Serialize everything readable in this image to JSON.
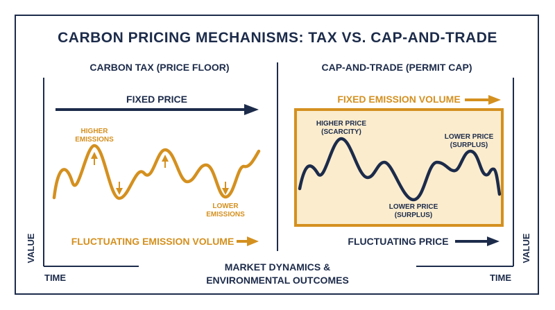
{
  "title": "CARBON PRICING MECHANISMS: TAX VS. CAP-AND-TRADE",
  "left": {
    "heading": "CARBON TAX (PRICE FLOOR)",
    "arrow_label": "FIXED PRICE",
    "bottom_label": "FLUCTUATING EMISSION VOLUME",
    "higher_label": [
      "HIGHER",
      "EMISSIONS"
    ],
    "lower_label": [
      "LOWER",
      "EMISSIONS"
    ],
    "axis_y": "VALUE",
    "axis_x": "TIME"
  },
  "right": {
    "heading": "CAP-AND-TRADE (PERMIT CAP)",
    "arrow_label": "FIXED EMISSION VOLUME",
    "bottom_label": "FLUCTUATING PRICE",
    "higher_label": [
      "HIGHER PRICE",
      "(SCARCITY)"
    ],
    "lower_label_mid": [
      "LOWER PRICE",
      "(SURPLUS)"
    ],
    "lower_label_right": [
      "LOWER PRICE",
      "(SURPLUS)"
    ],
    "axis_y": "VALUE",
    "axis_x": "TIME"
  },
  "footer": [
    "MARKET DYNAMICS &",
    "ENVIRONMENTAL OUTCOMES"
  ],
  "colors": {
    "navy": "#1c2b4a",
    "gold": "#d4901f",
    "cap_fill": "#fbeccd"
  }
}
